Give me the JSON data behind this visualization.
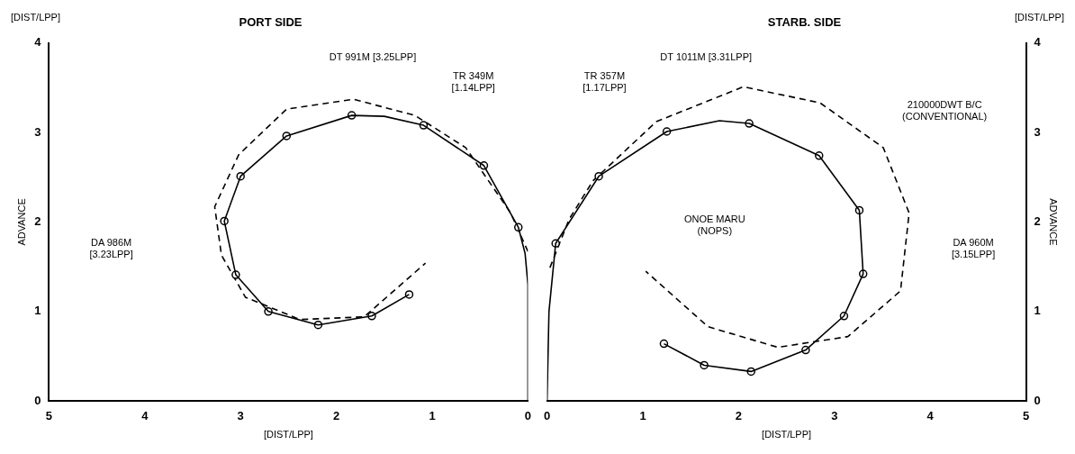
{
  "chart_data": [
    {
      "type": "line",
      "title": "PORT SIDE",
      "xlabel": "[DIST/LPP]",
      "ylabel": "ADVANCE",
      "xlim": [
        5,
        0
      ],
      "xticks": [
        5,
        4,
        3,
        2,
        1,
        0
      ],
      "ylim": [
        0,
        4
      ],
      "yticks": [
        0,
        1,
        2,
        3,
        4
      ],
      "grid": false,
      "legend": false,
      "series": [
        {
          "color": "#000000",
          "line_style": "solid",
          "x": [
            0,
            0,
            0.03,
            0.1,
            0.46,
            1.09,
            1.5,
            1.84,
            2.52,
            3.0,
            3.17,
            3.05,
            2.71,
            2.19,
            1.63,
            1.24
          ],
          "values": [
            0,
            1.3,
            1.65,
            1.94,
            2.63,
            3.08,
            3.18,
            3.19,
            2.96,
            2.51,
            2.01,
            1.41,
            1.0,
            0.85,
            0.95,
            1.19
          ]
        },
        {
          "type": "scatter",
          "color": "#000000",
          "marker": "circle",
          "x": [
            0.1,
            0.46,
            1.09,
            1.84,
            2.52,
            3.0,
            3.17,
            3.05,
            2.71,
            2.19,
            1.63,
            1.24
          ],
          "values": [
            1.94,
            2.63,
            3.08,
            3.19,
            2.96,
            2.51,
            2.01,
            1.41,
            1.0,
            0.85,
            0.95,
            1.19
          ]
        },
        {
          "color": "#000000",
          "line_style": "dashed",
          "x": [
            0,
            0.18,
            0.65,
            1.18,
            1.82,
            2.52,
            3.02,
            3.27,
            3.2,
            2.95,
            2.38,
            1.71,
            1.07
          ],
          "values": [
            1.67,
            2.1,
            2.83,
            3.19,
            3.37,
            3.26,
            2.75,
            2.17,
            1.63,
            1.16,
            0.91,
            0.94,
            1.54
          ]
        }
      ],
      "annotations": [
        "[DIST/LPP]",
        "DT 991M [3.25LPP]",
        "TR 349M\n[1.14LPP]",
        "DA 986M\n[3.23LPP]"
      ]
    },
    {
      "type": "line",
      "title": "STARB. SIDE",
      "xlabel": "[DIST/LPP]",
      "y2label": "ADVANCE",
      "xlim": [
        0,
        5
      ],
      "xticks": [
        0,
        1,
        2,
        3,
        4,
        5
      ],
      "y2lim": [
        0,
        4
      ],
      "y2ticks": [
        0,
        1,
        2,
        3,
        4
      ],
      "grid": false,
      "legend": false,
      "series": [
        {
          "axis": "y2",
          "color": "#000000",
          "line_style": "solid",
          "x": [
            0,
            0.02,
            0.09,
            0.54,
            1.25,
            1.8,
            2.11,
            2.84,
            3.26,
            3.3,
            3.1,
            2.7,
            2.13,
            1.64,
            1.22
          ],
          "values": [
            0,
            1.0,
            1.76,
            2.51,
            3.01,
            3.13,
            3.1,
            2.74,
            2.13,
            1.42,
            0.95,
            0.57,
            0.33,
            0.4,
            0.64
          ]
        },
        {
          "type": "scatter",
          "axis": "y2",
          "color": "#000000",
          "marker": "circle",
          "x": [
            0.09,
            0.54,
            1.25,
            2.11,
            2.84,
            3.26,
            3.3,
            3.1,
            2.7,
            2.13,
            1.64,
            1.22
          ],
          "values": [
            1.76,
            2.51,
            3.01,
            3.1,
            2.74,
            2.13,
            1.42,
            0.95,
            0.57,
            0.33,
            0.4,
            0.64
          ]
        },
        {
          "axis": "y2",
          "color": "#000000",
          "line_style": "dashed",
          "x": [
            0.03,
            0.23,
            0.48,
            1.14,
            2.05,
            2.85,
            3.51,
            3.78,
            3.69,
            3.14,
            2.41,
            1.68,
            1.03
          ],
          "values": [
            1.49,
            2.03,
            2.46,
            3.12,
            3.51,
            3.33,
            2.83,
            2.1,
            1.23,
            0.72,
            0.6,
            0.83,
            1.45
          ]
        }
      ],
      "annotations": [
        "[DIST/LPP]",
        "DT 1011M [3.31LPP]",
        "TR 357M\n[1.17LPP]",
        "210000DWT B/C\n(CONVENTIONAL)",
        "ONOE MARU\n(NOPS)",
        "DA 960M\n[3.15LPP]"
      ]
    }
  ]
}
